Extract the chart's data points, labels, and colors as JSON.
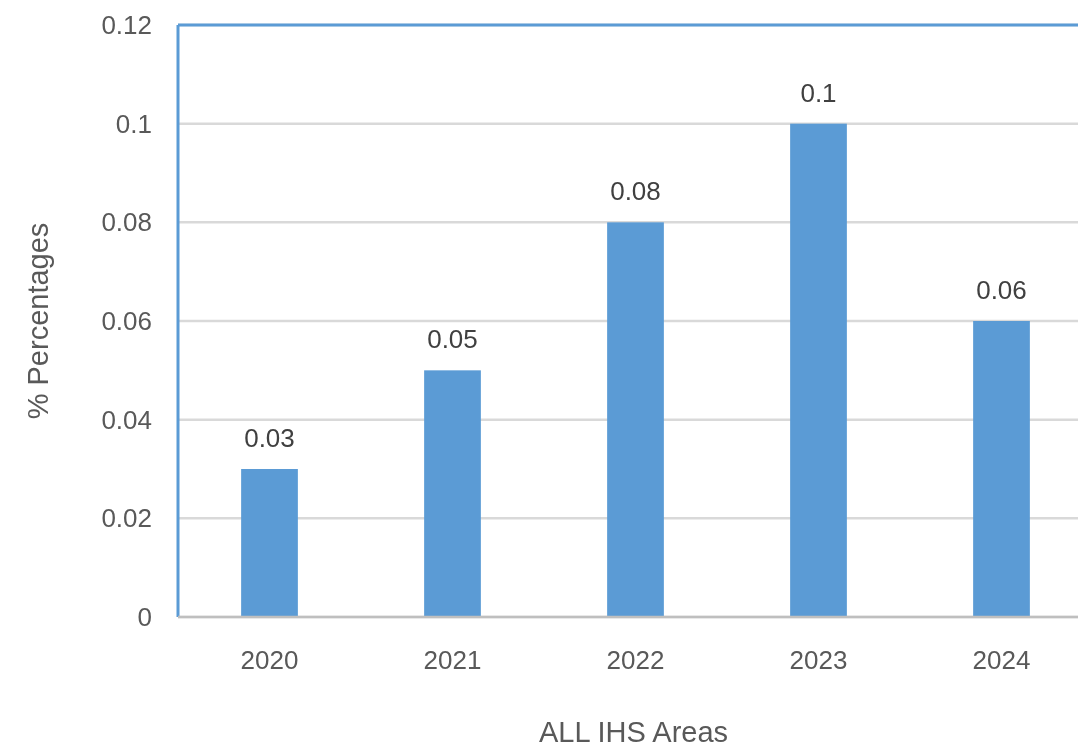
{
  "chart_data": {
    "type": "bar",
    "xlabel": "ALL IHS Areas",
    "ylabel": "% Percentages",
    "categories": [
      "2020",
      "2021",
      "2022",
      "2023",
      "2024"
    ],
    "values": [
      0.03,
      0.05,
      0.08,
      0.1,
      0.06
    ],
    "color": "#5b9bd5",
    "ylim": [
      0,
      0.12
    ],
    "yticks": [
      0,
      0.02,
      0.04,
      0.06,
      0.08,
      0.1,
      0.12
    ],
    "grid": "y",
    "data_labels": true
  }
}
